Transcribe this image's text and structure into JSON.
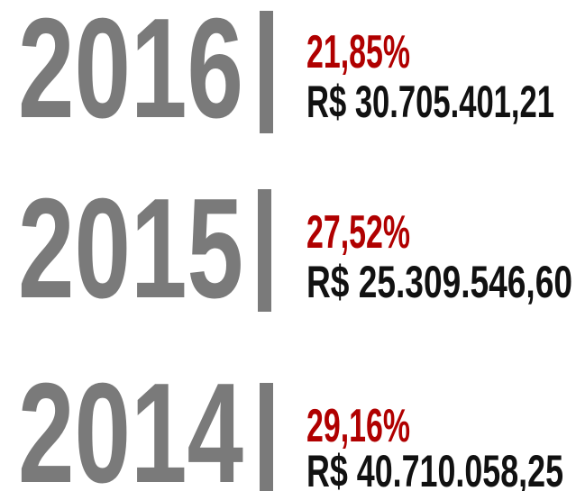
{
  "rows": [
    {
      "year": "2016",
      "percent": "21,85%",
      "amount": "R$ 30.705.401,21"
    },
    {
      "year": "2015",
      "percent": "27,52%",
      "amount": "R$ 25.309.546,60"
    },
    {
      "year": "2014",
      "percent": "29,16%",
      "amount": "R$ 40.710.058,25"
    }
  ]
}
